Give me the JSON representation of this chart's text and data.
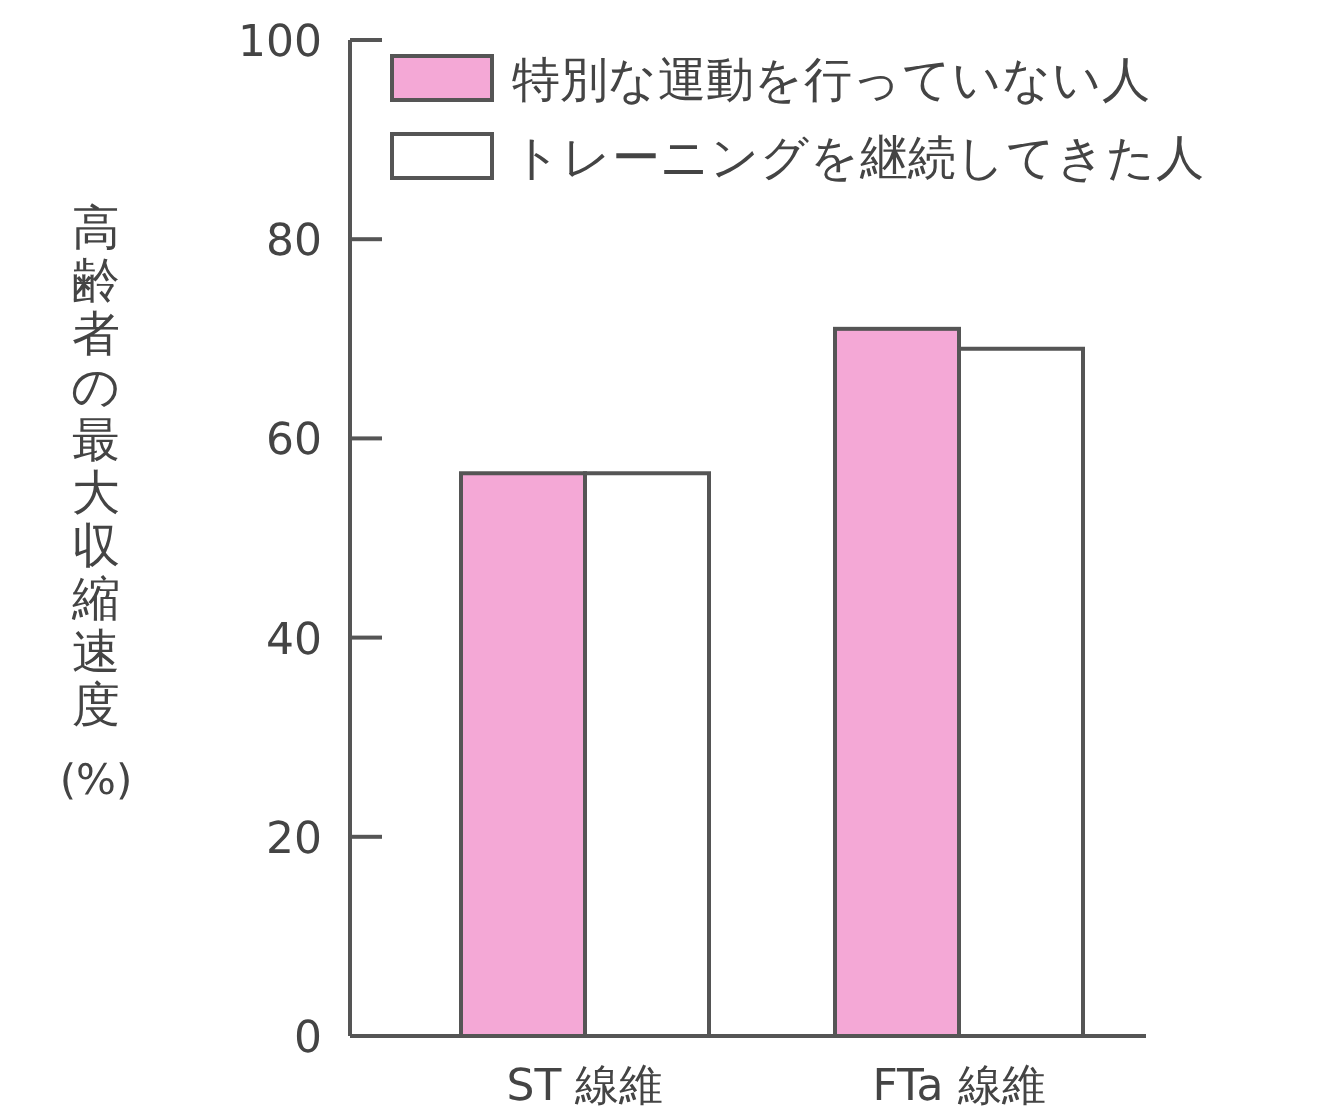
{
  "chart_data": {
    "type": "bar",
    "ylabel": "高齢者の最大収縮速度 (%)",
    "categories": [
      "ST 線維",
      "FTa 線維"
    ],
    "series": [
      {
        "name": "特別な運動を行っていない人",
        "color": "#f4a8d6",
        "values": [
          56.5,
          71
        ]
      },
      {
        "name": "トレーニングを継続してきた人",
        "color": "#ffffff",
        "values": [
          56.5,
          69
        ]
      }
    ],
    "ylim": [
      0,
      100
    ],
    "yticks": [
      0,
      20,
      40,
      60,
      80,
      100
    ],
    "legend": "top"
  }
}
